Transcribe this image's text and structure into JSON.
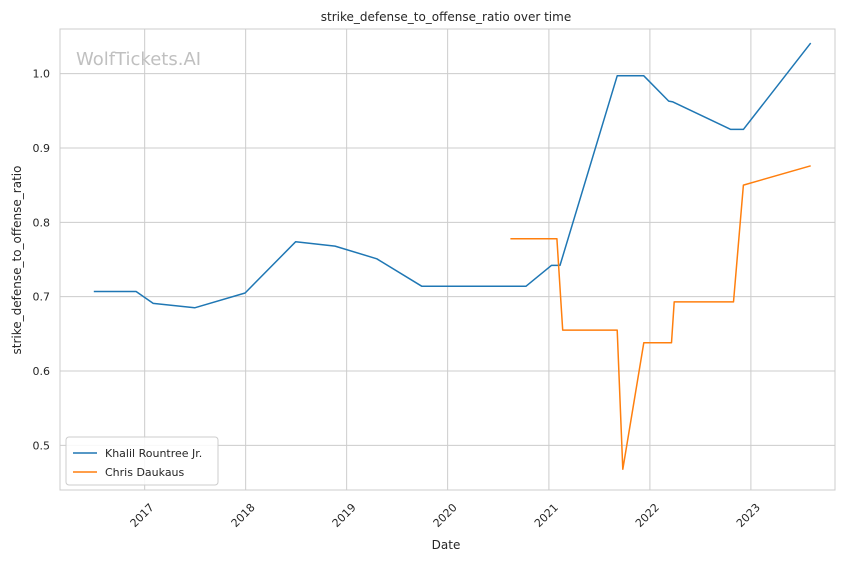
{
  "chart_data": {
    "type": "line",
    "title": "strike_defense_to_offense_ratio over time",
    "xlabel": "Date",
    "ylabel": "strike_defense_to_offense_ratio",
    "watermark": "WolfTickets.AI",
    "xlim": [
      "2016-03-01",
      "2023-11-01"
    ],
    "ylim": [
      0.44,
      1.06
    ],
    "x_ticks": [
      "2017",
      "2018",
      "2019",
      "2020",
      "2021",
      "2022",
      "2023"
    ],
    "y_ticks": [
      "0.5",
      "0.6",
      "0.7",
      "0.8",
      "0.9",
      "1.0"
    ],
    "grid": true,
    "legend_position": "lower-left",
    "series": [
      {
        "name": "Khalil Rountree Jr.",
        "color": "#1f77b4",
        "points": [
          [
            "2016-07-01",
            0.707
          ],
          [
            "2016-12-01",
            0.707
          ],
          [
            "2017-02-01",
            0.691
          ],
          [
            "2017-07-01",
            0.685
          ],
          [
            "2017-12-30",
            0.705
          ],
          [
            "2018-07-01",
            0.774
          ],
          [
            "2018-11-20",
            0.768
          ],
          [
            "2019-04-20",
            0.751
          ],
          [
            "2019-09-30",
            0.714
          ],
          [
            "2020-10-10",
            0.714
          ],
          [
            "2021-01-10",
            0.742
          ],
          [
            "2021-02-10",
            0.742
          ],
          [
            "2021-09-05",
            0.997
          ],
          [
            "2021-12-10",
            0.997
          ],
          [
            "2022-03-10",
            0.963
          ],
          [
            "2022-03-25",
            0.962
          ],
          [
            "2022-10-20",
            0.925
          ],
          [
            "2022-12-05",
            0.925
          ],
          [
            "2023-08-05",
            1.041
          ]
        ]
      },
      {
        "name": "Chris Daukaus",
        "color": "#ff7f0e",
        "points": [
          [
            "2020-08-15",
            0.778
          ],
          [
            "2021-01-30",
            0.778
          ],
          [
            "2021-02-20",
            0.655
          ],
          [
            "2021-09-05",
            0.655
          ],
          [
            "2021-09-25",
            0.468
          ],
          [
            "2021-12-10",
            0.638
          ],
          [
            "2022-03-20",
            0.638
          ],
          [
            "2022-03-30",
            0.693
          ],
          [
            "2022-10-30",
            0.693
          ],
          [
            "2022-12-05",
            0.85
          ],
          [
            "2023-08-05",
            0.876
          ]
        ]
      }
    ]
  }
}
